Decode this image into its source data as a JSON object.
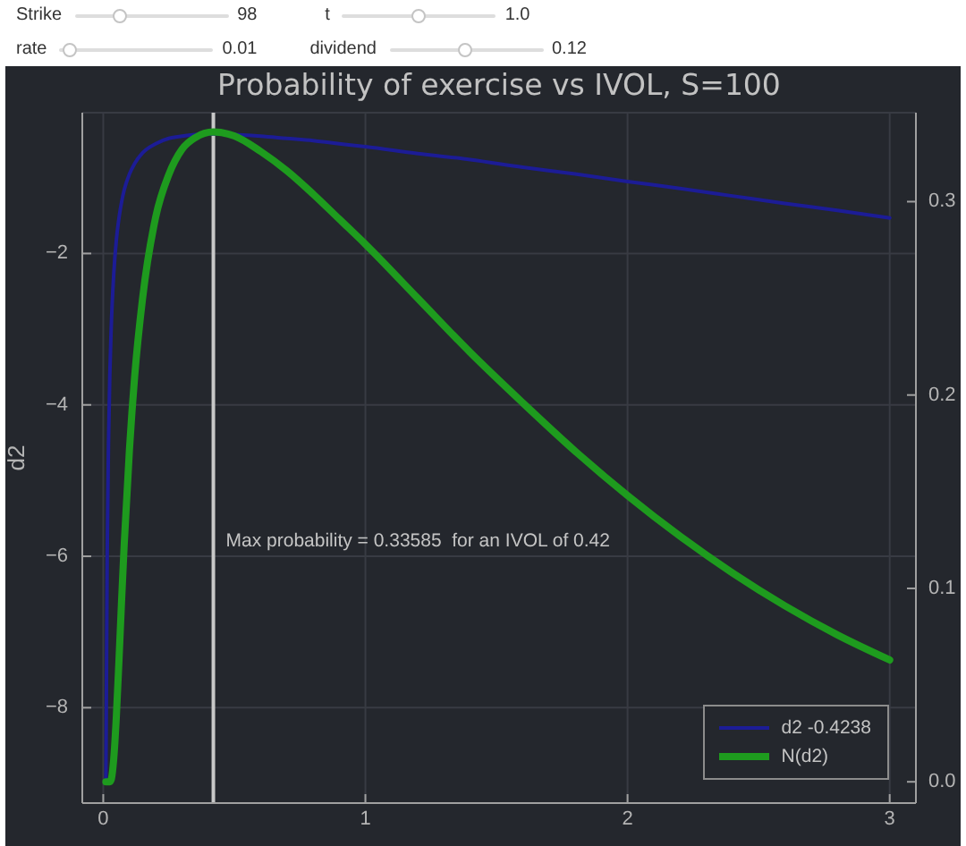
{
  "chart_data": {
    "type": "line",
    "title": "Probability of exercise vs IVOL, S=100",
    "ylabel": "d2",
    "x": [
      0.01,
      0.015,
      0.02,
      0.025,
      0.03,
      0.04,
      0.05,
      0.06,
      0.07,
      0.08,
      0.1,
      0.12,
      0.15,
      0.2,
      0.25,
      0.3,
      0.35,
      0.42,
      0.5,
      0.6,
      0.7,
      0.8,
      0.9,
      1.0,
      1.2,
      1.4,
      1.6,
      1.8,
      2.0,
      2.2,
      2.4,
      2.6,
      2.8,
      3.0
    ],
    "series": [
      {
        "name": "d2 -0.4238",
        "color": "#1c1c96",
        "axis": "y",
        "values": [
          -8.99,
          -5.99,
          -4.5,
          -3.6,
          -3.01,
          -2.27,
          -1.82,
          -1.53,
          -1.32,
          -1.16,
          -0.95,
          -0.81,
          -0.67,
          -0.55,
          -0.48,
          -0.45,
          -0.43,
          -0.42,
          -0.43,
          -0.45,
          -0.48,
          -0.51,
          -0.55,
          -0.59,
          -0.68,
          -0.76,
          -0.86,
          -0.95,
          -1.05,
          -1.14,
          -1.24,
          -1.34,
          -1.43,
          -1.53
        ]
      },
      {
        "name": "N(d2)",
        "color": "#1e9b1e",
        "axis": "y2",
        "values": [
          0,
          0,
          0,
          0,
          0.001,
          0.012,
          0.034,
          0.063,
          0.094,
          0.123,
          0.172,
          0.21,
          0.25,
          0.292,
          0.314,
          0.327,
          0.333,
          0.336,
          0.334,
          0.326,
          0.316,
          0.304,
          0.291,
          0.278,
          0.25,
          0.222,
          0.196,
          0.171,
          0.148,
          0.127,
          0.108,
          0.091,
          0.076,
          0.063
        ]
      }
    ],
    "xlim": [
      -0.08,
      3.1
    ],
    "xticks": [
      0,
      1,
      2,
      3
    ],
    "ylim": [
      -9.26,
      -0.14
    ],
    "yticks": [
      {
        "value": -8,
        "label": "−8"
      },
      {
        "value": -6,
        "label": "−6"
      },
      {
        "value": -4,
        "label": "−4"
      },
      {
        "value": -2,
        "label": "−2"
      }
    ],
    "y2lim": [
      -0.011,
      0.346
    ],
    "y2ticks": [
      {
        "value": 0,
        "label": "0.0"
      },
      0.1,
      0.2,
      0.3
    ],
    "ref_lines": [
      {
        "axis": "x",
        "value": 0.42,
        "label": "Max probability = 0.33585  for an IVOL of 0.42",
        "color": "#c8c8c8"
      }
    ],
    "grid": true,
    "legend": "bottom right",
    "annotations": [
      "Strike",
      "98",
      "t",
      "1.0",
      "rate",
      "0.01",
      "dividend",
      "0.12"
    ]
  }
}
